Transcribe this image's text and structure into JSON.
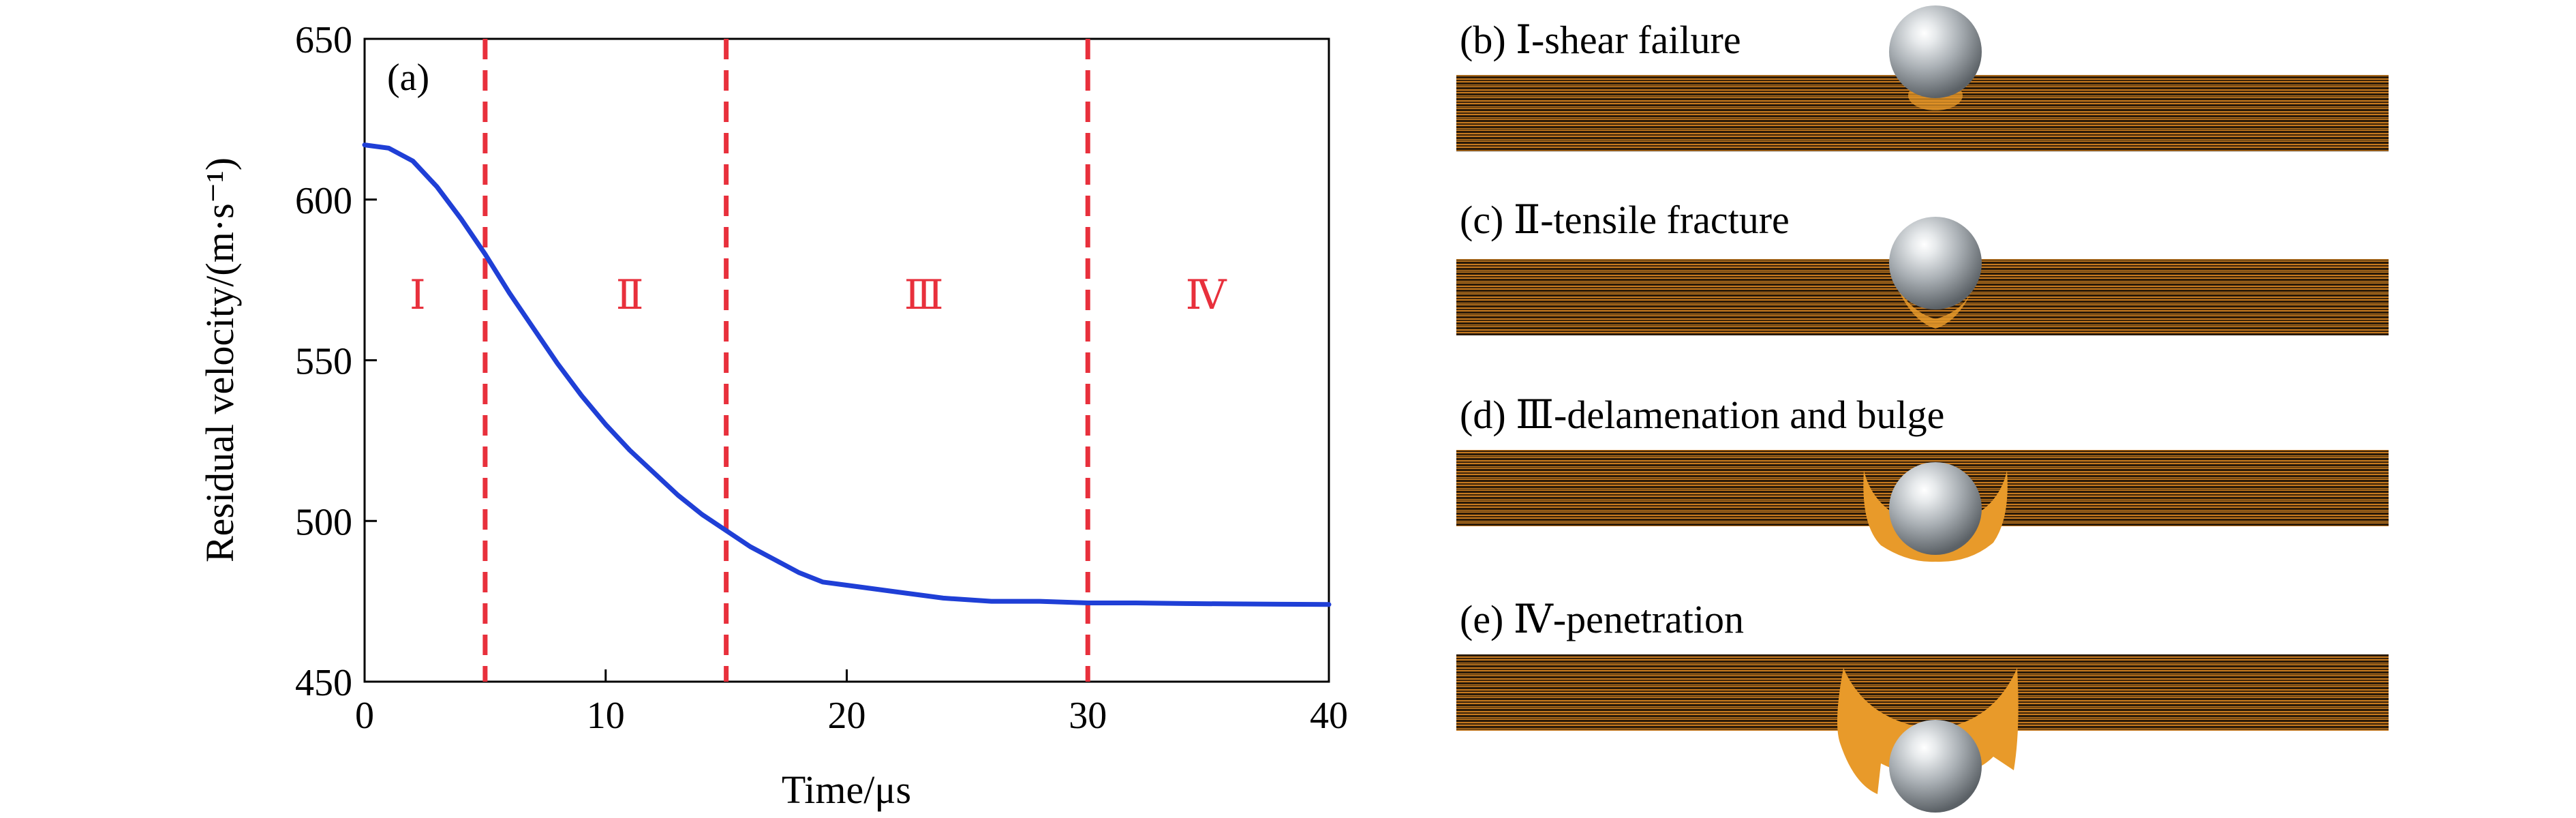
{
  "chart_data": {
    "type": "line",
    "panel_label": "(a)",
    "xlabel": "Time/μs",
    "ylabel": "Residual velocity/(m·s⁻¹)",
    "xlim": [
      0,
      40
    ],
    "ylim": [
      450,
      650
    ],
    "x_ticks": [
      "0",
      "10",
      "20",
      "30",
      "40"
    ],
    "y_ticks": [
      "450",
      "500",
      "550",
      "600",
      "650"
    ],
    "grid": false,
    "series": [
      {
        "color": "#1f3fd6",
        "x": [
          0,
          1,
          2,
          3,
          4,
          5,
          6,
          7,
          8,
          9,
          10,
          11,
          12,
          13,
          14,
          15,
          16,
          17,
          18,
          19,
          20,
          22,
          24,
          26,
          28,
          30,
          32,
          34,
          36,
          38,
          40
        ],
        "y": [
          617,
          616,
          612,
          604,
          594,
          583,
          571,
          560,
          549,
          539,
          530,
          522,
          515,
          508,
          502,
          497,
          492,
          488,
          484,
          481,
          480,
          478,
          476,
          475,
          475,
          474.5,
          474.5,
          474.3,
          474.2,
          474.1,
          474
        ]
      }
    ],
    "stage_boundaries": [
      5,
      15,
      30
    ],
    "boundary_color": "#e8303c",
    "stages": [
      {
        "label": "Ⅰ",
        "x_center": 2.2,
        "y": 566
      },
      {
        "label": "Ⅱ",
        "x_center": 11.0,
        "y": 566
      },
      {
        "label": "Ⅲ",
        "x_center": 23.2,
        "y": 566
      },
      {
        "label": "Ⅳ",
        "x_center": 34.9,
        "y": 566
      }
    ]
  },
  "panels": [
    {
      "caption": "(b) Ⅰ-shear failure"
    },
    {
      "caption": "(c) Ⅱ-tensile fracture"
    },
    {
      "caption": "(d) Ⅲ-delamenation and bulge"
    },
    {
      "caption": "(e) Ⅳ-penetration"
    }
  ],
  "colors": {
    "laminate_dark": "#2a1a08",
    "laminate_light": "#c77a1f",
    "debris": "#e89a2a",
    "sphere": "#b7bcc1"
  }
}
